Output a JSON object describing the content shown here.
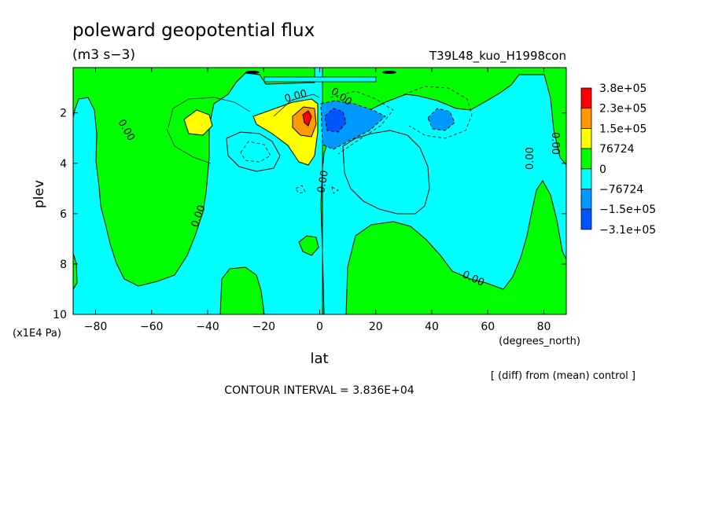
{
  "chart_data": {
    "type": "heatmap",
    "title": "poleward geopotential flux",
    "subtitle": "(m3 s−3)",
    "run_label": "T39L48_kuo_H1998con",
    "xlabel": "lat",
    "x_units": "(degrees_north)",
    "ylabel": "plev",
    "y_units": "(x1E4 Pa)",
    "xlim": [
      -88,
      88
    ],
    "ylim": [
      10,
      0.2
    ],
    "x_ticks": [
      -80,
      -60,
      -40,
      -20,
      0,
      20,
      40,
      60,
      80
    ],
    "y_ticks": [
      2,
      4,
      6,
      8,
      10
    ],
    "x_tick_labels": [
      "−80",
      "−60",
      "−40",
      "−20",
      "0",
      "20",
      "40",
      "60",
      "80"
    ],
    "y_tick_labels": [
      "2",
      "4",
      "6",
      "8",
      "10"
    ],
    "colorbar": {
      "labels": [
        "3.8e+05",
        "2.3e+05",
        "1.5e+05",
        "76724",
        "0",
        "−76724",
        "−1.5e+05",
        "−3.1e+05"
      ],
      "colors": [
        "#ff0000",
        "#ff9900",
        "#ffff00",
        "#00ff00",
        "#00ffff",
        "#0099ff",
        "#0055ff"
      ]
    },
    "contour_label": "0.00",
    "contour_interval_text": "CONTOUR INTERVAL = 3.836E+04",
    "note": "[ (diff) from (mean) control ]",
    "features": [
      {
        "name": "positive-max",
        "lat": -5,
        "plev": 2.2,
        "value": 380000.0
      },
      {
        "name": "positive-core",
        "lat": -10,
        "plev": 2.3,
        "value": 150000.0
      },
      {
        "name": "positive-south",
        "lat": -44,
        "plev": 2.3,
        "value": 100000.0
      },
      {
        "name": "negative-core",
        "lat": 6,
        "plev": 2.3,
        "value": -150000.0
      },
      {
        "name": "negative-north",
        "lat": 43,
        "plev": 2.2,
        "value": -120000.0
      }
    ]
  }
}
